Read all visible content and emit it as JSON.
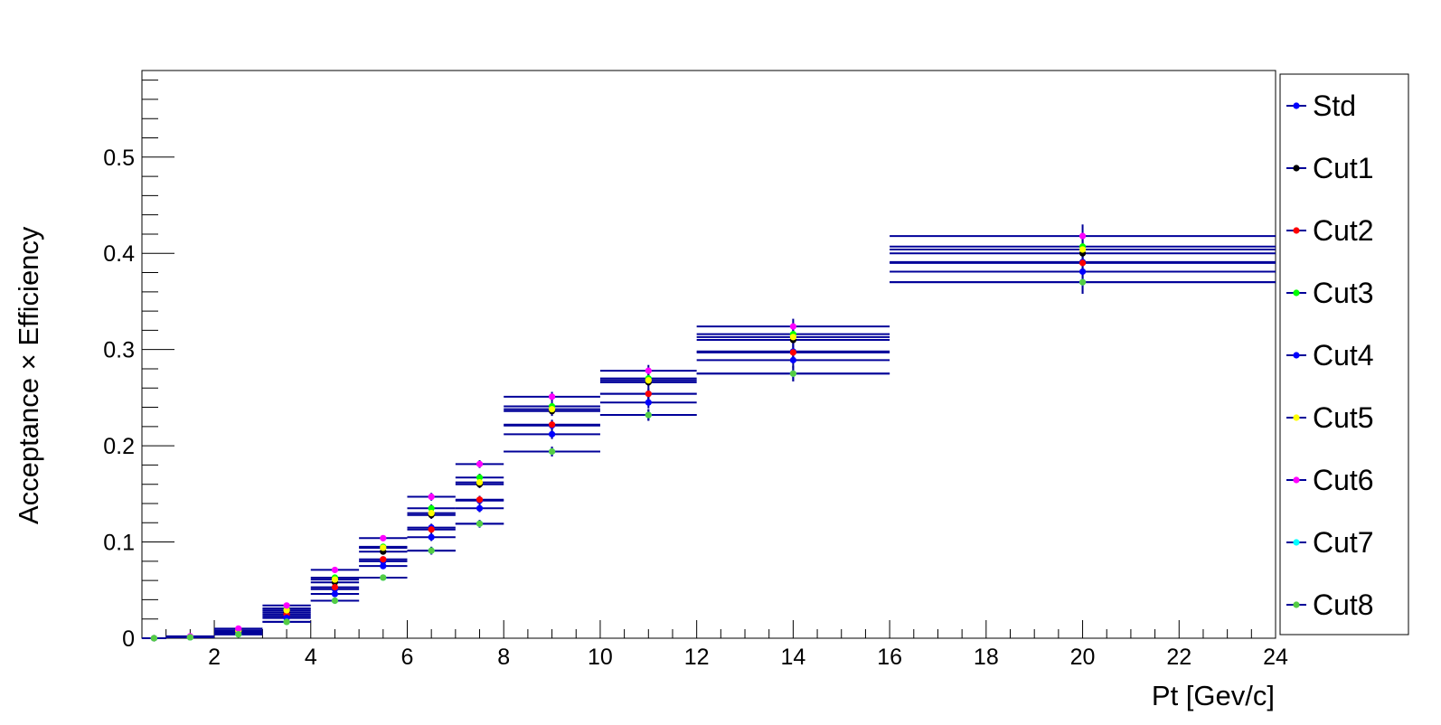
{
  "chart_data": {
    "type": "scatter",
    "title": "",
    "xlabel": "Pt [Gev/c]",
    "ylabel": "Acceptance × Efficiency",
    "xlim": [
      0.5,
      24
    ],
    "ylim": [
      0,
      0.59
    ],
    "x_ticks": [
      2,
      4,
      6,
      8,
      10,
      12,
      14,
      16,
      18,
      20,
      22,
      24
    ],
    "y_ticks": [
      0,
      0.1,
      0.2,
      0.3,
      0.4,
      0.5
    ],
    "grid": false,
    "legend_position": "right",
    "bins": [
      {
        "x": 0.75,
        "xerr": 0.25
      },
      {
        "x": 1.5,
        "xerr": 0.5
      },
      {
        "x": 2.5,
        "xerr": 0.5
      },
      {
        "x": 3.5,
        "xerr": 0.5
      },
      {
        "x": 4.5,
        "xerr": 0.5
      },
      {
        "x": 5.5,
        "xerr": 0.5
      },
      {
        "x": 6.5,
        "xerr": 0.5
      },
      {
        "x": 7.5,
        "xerr": 0.5
      },
      {
        "x": 9,
        "xerr": 1
      },
      {
        "x": 11,
        "xerr": 1
      },
      {
        "x": 14,
        "xerr": 2
      },
      {
        "x": 20,
        "xerr": 4
      }
    ],
    "series": [
      {
        "name": "Std",
        "color": "#0000ff",
        "values": [
          0.0,
          0.001,
          0.006,
          0.023,
          0.051,
          0.08,
          0.115,
          0.143,
          0.221,
          0.254,
          0.298,
          0.391
        ],
        "yerr": [
          0.0005,
          0.001,
          0.002,
          0.003,
          0.003,
          0.003,
          0.004,
          0.004,
          0.005,
          0.006,
          0.008,
          0.012
        ]
      },
      {
        "name": "Cut1",
        "color": "#000000",
        "values": [
          0.0,
          0.001,
          0.007,
          0.027,
          0.058,
          0.09,
          0.128,
          0.16,
          0.236,
          0.266,
          0.31,
          0.4
        ],
        "yerr": [
          0.0005,
          0.001,
          0.002,
          0.003,
          0.003,
          0.003,
          0.004,
          0.004,
          0.005,
          0.006,
          0.008,
          0.012
        ]
      },
      {
        "name": "Cut2",
        "color": "#ff0000",
        "values": [
          0.0,
          0.001,
          0.006,
          0.025,
          0.053,
          0.082,
          0.113,
          0.144,
          0.222,
          0.254,
          0.297,
          0.39
        ],
        "yerr": [
          0.0005,
          0.001,
          0.002,
          0.003,
          0.003,
          0.003,
          0.004,
          0.004,
          0.005,
          0.006,
          0.008,
          0.012
        ]
      },
      {
        "name": "Cut3",
        "color": "#00ff00",
        "values": [
          0.0,
          0.001,
          0.008,
          0.031,
          0.063,
          0.095,
          0.135,
          0.167,
          0.241,
          0.27,
          0.316,
          0.407
        ],
        "yerr": [
          0.0005,
          0.001,
          0.002,
          0.003,
          0.003,
          0.003,
          0.004,
          0.004,
          0.005,
          0.006,
          0.008,
          0.012
        ]
      },
      {
        "name": "Cut4",
        "color": "#0000ff",
        "values": [
          0.0,
          0.001,
          0.005,
          0.021,
          0.046,
          0.075,
          0.105,
          0.135,
          0.212,
          0.245,
          0.289,
          0.381
        ],
        "yerr": [
          0.0005,
          0.001,
          0.002,
          0.003,
          0.003,
          0.003,
          0.004,
          0.004,
          0.005,
          0.006,
          0.008,
          0.012
        ]
      },
      {
        "name": "Cut5",
        "color": "#ffff00",
        "values": [
          0.0,
          0.001,
          0.008,
          0.029,
          0.061,
          0.094,
          0.13,
          0.162,
          0.238,
          0.268,
          0.313,
          0.404
        ],
        "yerr": [
          0.0005,
          0.001,
          0.002,
          0.003,
          0.003,
          0.003,
          0.004,
          0.004,
          0.005,
          0.006,
          0.008,
          0.012
        ]
      },
      {
        "name": "Cut6",
        "color": "#ff00ff",
        "values": [
          0.0,
          0.002,
          0.01,
          0.034,
          0.071,
          0.104,
          0.147,
          0.181,
          0.251,
          0.278,
          0.324,
          0.418
        ],
        "yerr": [
          0.0005,
          0.001,
          0.002,
          0.003,
          0.003,
          0.003,
          0.004,
          0.004,
          0.005,
          0.006,
          0.008,
          0.012
        ]
      },
      {
        "name": "Cut7",
        "color": "#00ffff",
        "values": [
          0.0,
          0.001,
          0.004,
          0.017,
          0.039,
          0.063,
          0.091,
          0.119,
          0.194,
          0.232,
          0.275,
          0.37
        ],
        "yerr": [
          0.0005,
          0.001,
          0.002,
          0.003,
          0.003,
          0.003,
          0.004,
          0.004,
          0.005,
          0.006,
          0.008,
          0.012
        ]
      },
      {
        "name": "Cut8",
        "color": "#55cc44",
        "values": [
          0.0,
          0.001,
          0.004,
          0.017,
          0.039,
          0.063,
          0.091,
          0.119,
          0.194,
          0.232,
          0.275,
          0.37
        ],
        "yerr": [
          0.0005,
          0.001,
          0.002,
          0.003,
          0.003,
          0.003,
          0.004,
          0.004,
          0.005,
          0.006,
          0.008,
          0.012
        ]
      }
    ],
    "error_bar_color": "#000099"
  }
}
